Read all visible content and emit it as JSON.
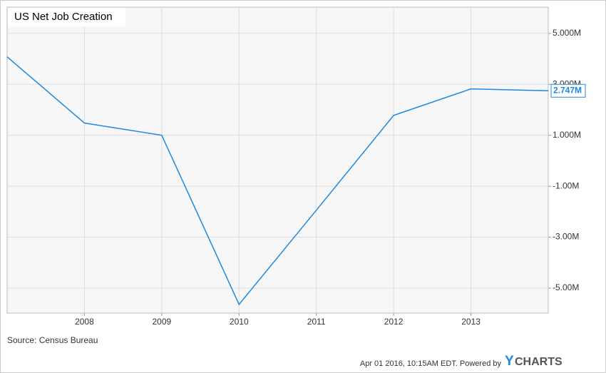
{
  "chart_data": {
    "type": "line",
    "title": "US Net Job Creation",
    "x": [
      2007,
      2008,
      2009,
      2010,
      2011,
      2012,
      2013,
      2014
    ],
    "xlim": [
      2007,
      2014
    ],
    "xticks": [
      2008,
      2009,
      2010,
      2011,
      2012,
      2013
    ],
    "series": [
      {
        "name": "US Net Job Creation",
        "color": "#1f88e0",
        "values": [
          4.08,
          1.48,
          1.0,
          -5.64,
          -1.94,
          1.78,
          2.82,
          2.747
        ],
        "value_labels": [
          null,
          null,
          null,
          null,
          null,
          null,
          null,
          "2.747M"
        ]
      }
    ],
    "ylim": [
      -5.98,
      6.03
    ],
    "yticks": [
      {
        "value": -5,
        "label": "-5.00M"
      },
      {
        "value": -3,
        "label": "-3.00M"
      },
      {
        "value": -1,
        "label": "-1.00M"
      },
      {
        "value": 1,
        "label": "1.000M"
      },
      {
        "value": 3,
        "label": "3.000M"
      },
      {
        "value": 5,
        "label": "5.000M"
      }
    ],
    "grid": true,
    "source": "Source: Census Bureau",
    "timestamp": "Apr 01 2016, 10:15AM EDT. Powered by",
    "logo_y": "Y",
    "logo_rest": "CHARTS"
  }
}
